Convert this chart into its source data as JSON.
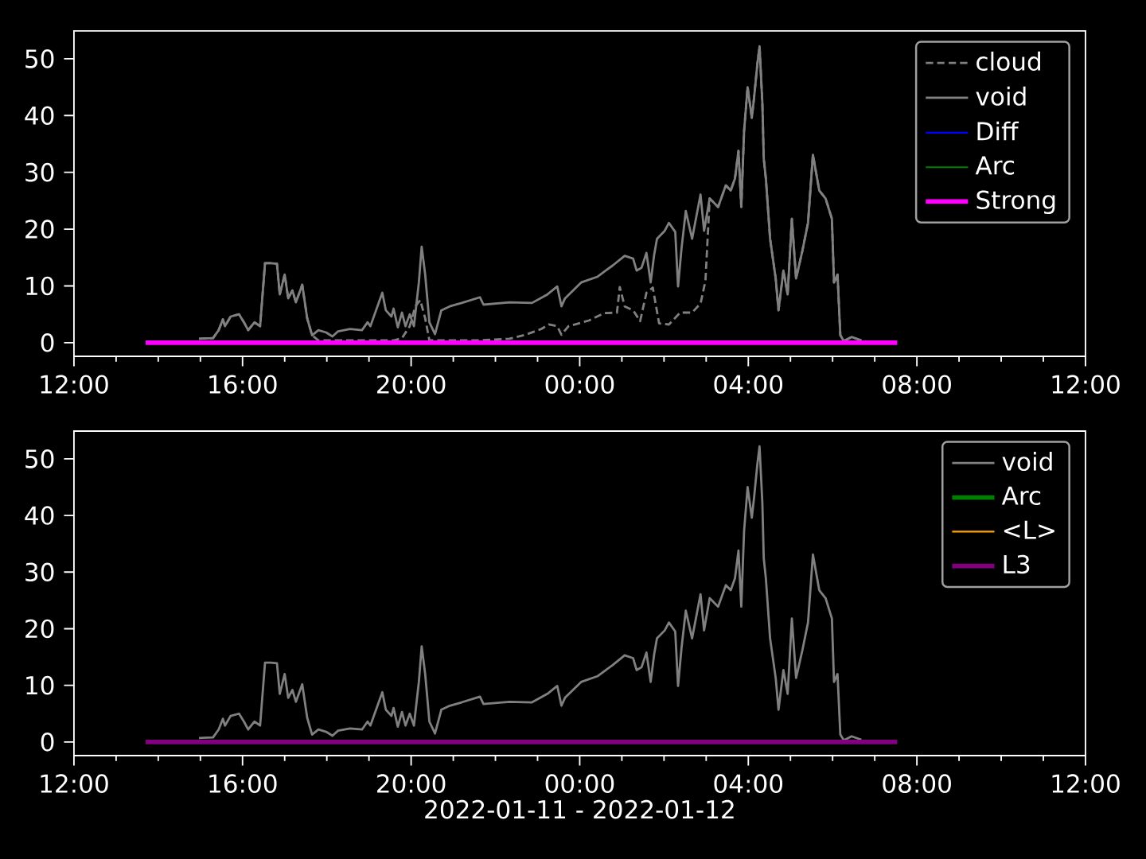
{
  "chart_data": [
    {
      "type": "line",
      "xlim": [
        "2022-01-11T12:00",
        "2022-01-12T12:00"
      ],
      "ylim": [
        -2.4,
        54.9
      ],
      "xticks": [
        {
          "value": "2022-01-11T12:00",
          "label": "12:00"
        },
        {
          "value": "2022-01-11T16:00",
          "label": "16:00"
        },
        {
          "value": "2022-01-11T20:00",
          "label": "20:00"
        },
        {
          "value": "2022-01-12T00:00",
          "label": "00:00"
        },
        {
          "value": "2022-01-12T04:00",
          "label": "04:00"
        },
        {
          "value": "2022-01-12T08:00",
          "label": "08:00"
        },
        {
          "value": "2022-01-12T12:00",
          "label": "12:00"
        }
      ],
      "yticks": [
        0,
        10,
        20,
        30,
        40,
        50
      ],
      "legend": "top right",
      "series": [
        {
          "name": "cloud",
          "color": "#808080",
          "line_style": "dashed",
          "x": [
            "2022-01-11T14:58",
            "2022-01-11T15:18",
            "2022-01-11T15:26",
            "2022-01-11T15:32",
            "2022-01-11T15:35",
            "2022-01-11T15:43",
            "2022-01-11T15:55",
            "2022-01-11T16:02",
            "2022-01-11T16:08",
            "2022-01-11T16:17",
            "2022-01-11T16:25",
            "2022-01-11T16:32",
            "2022-01-11T16:40",
            "2022-01-11T16:49",
            "2022-01-11T16:53",
            "2022-01-11T17:00",
            "2022-01-11T17:05",
            "2022-01-11T17:11",
            "2022-01-11T17:16",
            "2022-01-11T17:25",
            "2022-01-11T17:32",
            "2022-01-11T17:39",
            "2022-01-11T17:48",
            "2022-01-11T18:44",
            "2022-01-11T19:35",
            "2022-01-11T19:47",
            "2022-01-11T19:58",
            "2022-01-11T20:06",
            "2022-01-11T20:13",
            "2022-01-11T20:20",
            "2022-01-11T20:26",
            "2022-01-11T20:49",
            "2022-01-11T21:34",
            "2022-01-11T22:20",
            "2022-01-11T22:43",
            "2022-01-11T23:05",
            "2022-01-11T23:16",
            "2022-01-11T23:28",
            "2022-01-11T23:34",
            "2022-01-11T23:44",
            "2022-01-12T00:13",
            "2022-01-12T00:35",
            "2022-01-12T00:53",
            "2022-01-12T00:57",
            "2022-01-12T01:04",
            "2022-01-12T01:16",
            "2022-01-12T01:26",
            "2022-01-12T01:35",
            "2022-01-12T01:44",
            "2022-01-12T01:53",
            "2022-01-12T02:07",
            "2022-01-12T02:23",
            "2022-01-12T02:40",
            "2022-01-12T02:52",
            "2022-01-12T02:59",
            "2022-01-12T03:05",
            "2022-01-12T03:17",
            "2022-01-12T03:28",
            "2022-01-12T03:35",
            "2022-01-12T03:41",
            "2022-01-12T03:46",
            "2022-01-12T03:50",
            "2022-01-12T03:54",
            "2022-01-12T03:59",
            "2022-01-12T04:05",
            "2022-01-12T04:08",
            "2022-01-12T04:13",
            "2022-01-12T04:16",
            "2022-01-12T04:20",
            "2022-01-12T04:22",
            "2022-01-12T04:25",
            "2022-01-12T04:31",
            "2022-01-12T04:39",
            "2022-01-12T04:43",
            "2022-01-12T04:50",
            "2022-01-12T04:56",
            "2022-01-12T05:02",
            "2022-01-12T05:08",
            "2022-01-12T05:17",
            "2022-01-12T05:25",
            "2022-01-12T05:32",
            "2022-01-12T05:41",
            "2022-01-12T05:50",
            "2022-01-12T05:59",
            "2022-01-12T06:02",
            "2022-01-12T06:07",
            "2022-01-12T06:11",
            "2022-01-12T06:16",
            "2022-01-12T06:27",
            "2022-01-12T06:41"
          ],
          "values": [
            0.7,
            0.8,
            2.2,
            4.1,
            2.9,
            4.6,
            5.0,
            3.6,
            2.2,
            3.6,
            2.9,
            14.0,
            14.0,
            13.9,
            8.5,
            12.0,
            7.8,
            9.2,
            7.1,
            10.2,
            4.3,
            1.3,
            0.4,
            0.4,
            0.4,
            0.8,
            2.9,
            6.4,
            7.5,
            4.3,
            0.4,
            0.4,
            0.4,
            0.7,
            1.4,
            2.4,
            3.2,
            2.9,
            1.4,
            2.9,
            3.9,
            5.2,
            5.3,
            9.8,
            6.4,
            5.7,
            3.8,
            8.8,
            9.7,
            3.4,
            3.2,
            5.3,
            5.3,
            6.9,
            10.9,
            25.4,
            23.9,
            27.7,
            26.8,
            28.9,
            33.8,
            23.9,
            37.3,
            45.0,
            39.6,
            42.9,
            49.2,
            52.2,
            42.2,
            32.4,
            28.9,
            18.3,
            11.3,
            5.7,
            12.7,
            8.5,
            21.8,
            11.3,
            16.2,
            21.1,
            33.1,
            26.8,
            25.4,
            21.8,
            10.6,
            12.0,
            1.3,
            0.3,
            1.0,
            0.4
          ]
        },
        {
          "name": "void",
          "color": "#808080",
          "x": [
            "2022-01-11T14:58",
            "2022-01-11T15:18",
            "2022-01-11T15:26",
            "2022-01-11T15:32",
            "2022-01-11T15:35",
            "2022-01-11T15:43",
            "2022-01-11T15:55",
            "2022-01-11T16:02",
            "2022-01-11T16:08",
            "2022-01-11T16:17",
            "2022-01-11T16:25",
            "2022-01-11T16:32",
            "2022-01-11T16:40",
            "2022-01-11T16:49",
            "2022-01-11T16:53",
            "2022-01-11T17:00",
            "2022-01-11T17:05",
            "2022-01-11T17:11",
            "2022-01-11T17:16",
            "2022-01-11T17:25",
            "2022-01-11T17:32",
            "2022-01-11T17:39",
            "2022-01-11T17:48",
            "2022-01-11T17:59",
            "2022-01-11T18:08",
            "2022-01-11T18:16",
            "2022-01-11T18:33",
            "2022-01-11T18:50",
            "2022-01-11T18:58",
            "2022-01-11T19:02",
            "2022-01-11T19:19",
            "2022-01-11T19:24",
            "2022-01-11T19:32",
            "2022-01-11T19:35",
            "2022-01-11T19:41",
            "2022-01-11T19:47",
            "2022-01-11T19:52",
            "2022-01-11T19:58",
            "2022-01-11T20:04",
            "2022-01-11T20:11",
            "2022-01-11T20:15",
            "2022-01-11T20:20",
            "2022-01-11T20:26",
            "2022-01-11T20:34",
            "2022-01-11T20:43",
            "2022-01-11T20:55",
            "2022-01-11T21:12",
            "2022-01-11T21:38",
            "2022-01-11T21:43",
            "2022-01-11T22:20",
            "2022-01-11T22:52",
            "2022-01-11T23:14",
            "2022-01-11T23:28",
            "2022-01-11T23:34",
            "2022-01-11T23:39",
            "2022-01-12T00:02",
            "2022-01-12T00:25",
            "2022-01-12T00:47",
            "2022-01-12T01:04",
            "2022-01-12T01:16",
            "2022-01-12T01:21",
            "2022-01-12T01:28",
            "2022-01-12T01:35",
            "2022-01-12T01:41",
            "2022-01-12T01:46",
            "2022-01-12T01:50",
            "2022-01-12T02:01",
            "2022-01-12T02:07",
            "2022-01-12T02:16",
            "2022-01-12T02:20",
            "2022-01-12T02:25",
            "2022-01-12T02:31",
            "2022-01-12T02:40",
            "2022-01-12T02:52",
            "2022-01-12T02:57",
            "2022-01-12T03:05",
            "2022-01-12T03:17",
            "2022-01-12T03:28",
            "2022-01-12T03:35",
            "2022-01-12T03:41",
            "2022-01-12T03:46",
            "2022-01-12T03:50",
            "2022-01-12T03:54",
            "2022-01-12T03:59",
            "2022-01-12T04:05",
            "2022-01-12T04:08",
            "2022-01-12T04:13",
            "2022-01-12T04:16",
            "2022-01-12T04:20",
            "2022-01-12T04:22",
            "2022-01-12T04:25",
            "2022-01-12T04:31",
            "2022-01-12T04:39",
            "2022-01-12T04:43",
            "2022-01-12T04:50",
            "2022-01-12T04:56",
            "2022-01-12T05:02",
            "2022-01-12T05:08",
            "2022-01-12T05:17",
            "2022-01-12T05:25",
            "2022-01-12T05:32",
            "2022-01-12T05:41",
            "2022-01-12T05:50",
            "2022-01-12T05:59",
            "2022-01-12T06:02",
            "2022-01-12T06:07",
            "2022-01-12T06:11",
            "2022-01-12T06:16",
            "2022-01-12T06:27",
            "2022-01-12T06:41"
          ],
          "values": [
            0.7,
            0.8,
            2.2,
            4.1,
            2.9,
            4.6,
            5.0,
            3.6,
            2.2,
            3.6,
            2.9,
            14.0,
            14.0,
            13.9,
            8.5,
            12.0,
            7.8,
            9.2,
            7.1,
            10.2,
            4.3,
            1.3,
            2.2,
            1.8,
            1.1,
            2.0,
            2.4,
            2.2,
            3.6,
            2.9,
            8.8,
            5.7,
            4.6,
            6.0,
            2.7,
            5.3,
            2.9,
            5.0,
            2.9,
            10.6,
            16.9,
            12.0,
            3.6,
            1.5,
            5.7,
            6.4,
            7.0,
            8.0,
            6.7,
            7.1,
            7.0,
            8.5,
            9.9,
            6.4,
            7.8,
            10.6,
            11.6,
            13.6,
            15.3,
            14.8,
            12.7,
            13.2,
            15.8,
            10.6,
            15.5,
            18.3,
            19.7,
            21.1,
            19.5,
            9.9,
            16.7,
            23.2,
            18.3,
            26.1,
            19.7,
            25.4,
            23.9,
            27.7,
            26.8,
            28.9,
            33.8,
            23.9,
            37.3,
            45.0,
            39.6,
            42.9,
            49.2,
            52.2,
            42.2,
            32.4,
            28.9,
            18.3,
            11.3,
            5.7,
            12.7,
            8.5,
            21.8,
            11.3,
            16.2,
            21.1,
            33.1,
            26.8,
            25.4,
            21.8,
            10.6,
            12.0,
            1.3,
            0.3,
            1.0,
            0.4
          ]
        },
        {
          "name": "Diff",
          "color": "#0000ff",
          "values": [
            null
          ]
        },
        {
          "name": "Arc",
          "color": "#008000",
          "values": [
            null
          ]
        },
        {
          "name": "Strong",
          "color": "#ff00ff",
          "x": [
            "2022-01-11T13:42",
            "2022-01-12T07:32"
          ],
          "values": [
            0,
            0
          ]
        }
      ]
    },
    {
      "type": "line",
      "xlim": [
        "2022-01-11T12:00",
        "2022-01-12T12:00"
      ],
      "ylim": [
        -2.4,
        54.9
      ],
      "xlabel": "2022-01-11 - 2022-01-12",
      "xticks": [
        {
          "value": "2022-01-11T12:00",
          "label": "12:00"
        },
        {
          "value": "2022-01-11T16:00",
          "label": "16:00"
        },
        {
          "value": "2022-01-11T20:00",
          "label": "20:00"
        },
        {
          "value": "2022-01-12T00:00",
          "label": "00:00"
        },
        {
          "value": "2022-01-12T04:00",
          "label": "04:00"
        },
        {
          "value": "2022-01-12T08:00",
          "label": "08:00"
        },
        {
          "value": "2022-01-12T12:00",
          "label": "12:00"
        }
      ],
      "yticks": [
        0,
        10,
        20,
        30,
        40,
        50
      ],
      "legend": "top right",
      "series": [
        {
          "name": "void",
          "color": "#808080",
          "x": [
            "2022-01-11T14:58",
            "2022-01-11T15:18",
            "2022-01-11T15:26",
            "2022-01-11T15:32",
            "2022-01-11T15:35",
            "2022-01-11T15:43",
            "2022-01-11T15:55",
            "2022-01-11T16:02",
            "2022-01-11T16:08",
            "2022-01-11T16:17",
            "2022-01-11T16:25",
            "2022-01-11T16:32",
            "2022-01-11T16:40",
            "2022-01-11T16:49",
            "2022-01-11T16:53",
            "2022-01-11T17:00",
            "2022-01-11T17:05",
            "2022-01-11T17:11",
            "2022-01-11T17:16",
            "2022-01-11T17:25",
            "2022-01-11T17:32",
            "2022-01-11T17:39",
            "2022-01-11T17:48",
            "2022-01-11T17:59",
            "2022-01-11T18:08",
            "2022-01-11T18:16",
            "2022-01-11T18:33",
            "2022-01-11T18:50",
            "2022-01-11T18:58",
            "2022-01-11T19:02",
            "2022-01-11T19:19",
            "2022-01-11T19:24",
            "2022-01-11T19:32",
            "2022-01-11T19:35",
            "2022-01-11T19:41",
            "2022-01-11T19:47",
            "2022-01-11T19:52",
            "2022-01-11T19:58",
            "2022-01-11T20:04",
            "2022-01-11T20:11",
            "2022-01-11T20:15",
            "2022-01-11T20:20",
            "2022-01-11T20:26",
            "2022-01-11T20:34",
            "2022-01-11T20:43",
            "2022-01-11T20:55",
            "2022-01-11T21:12",
            "2022-01-11T21:38",
            "2022-01-11T21:43",
            "2022-01-11T22:20",
            "2022-01-11T22:52",
            "2022-01-11T23:14",
            "2022-01-11T23:28",
            "2022-01-11T23:34",
            "2022-01-11T23:39",
            "2022-01-12T00:02",
            "2022-01-12T00:25",
            "2022-01-12T00:47",
            "2022-01-12T01:04",
            "2022-01-12T01:16",
            "2022-01-12T01:21",
            "2022-01-12T01:28",
            "2022-01-12T01:35",
            "2022-01-12T01:41",
            "2022-01-12T01:46",
            "2022-01-12T01:50",
            "2022-01-12T02:01",
            "2022-01-12T02:07",
            "2022-01-12T02:16",
            "2022-01-12T02:20",
            "2022-01-12T02:25",
            "2022-01-12T02:31",
            "2022-01-12T02:40",
            "2022-01-12T02:52",
            "2022-01-12T02:57",
            "2022-01-12T03:05",
            "2022-01-12T03:17",
            "2022-01-12T03:28",
            "2022-01-12T03:35",
            "2022-01-12T03:41",
            "2022-01-12T03:46",
            "2022-01-12T03:50",
            "2022-01-12T03:54",
            "2022-01-12T03:59",
            "2022-01-12T04:05",
            "2022-01-12T04:08",
            "2022-01-12T04:13",
            "2022-01-12T04:16",
            "2022-01-12T04:20",
            "2022-01-12T04:22",
            "2022-01-12T04:25",
            "2022-01-12T04:31",
            "2022-01-12T04:39",
            "2022-01-12T04:43",
            "2022-01-12T04:50",
            "2022-01-12T04:56",
            "2022-01-12T05:02",
            "2022-01-12T05:08",
            "2022-01-12T05:17",
            "2022-01-12T05:25",
            "2022-01-12T05:32",
            "2022-01-12T05:41",
            "2022-01-12T05:50",
            "2022-01-12T05:59",
            "2022-01-12T06:02",
            "2022-01-12T06:07",
            "2022-01-12T06:11",
            "2022-01-12T06:16",
            "2022-01-12T06:27",
            "2022-01-12T06:41"
          ],
          "values": [
            0.7,
            0.8,
            2.2,
            4.1,
            2.9,
            4.6,
            5.0,
            3.6,
            2.2,
            3.6,
            2.9,
            14.0,
            14.0,
            13.9,
            8.5,
            12.0,
            7.8,
            9.2,
            7.1,
            10.2,
            4.3,
            1.3,
            2.2,
            1.8,
            1.1,
            2.0,
            2.4,
            2.2,
            3.6,
            2.9,
            8.8,
            5.7,
            4.6,
            6.0,
            2.7,
            5.3,
            2.9,
            5.0,
            2.9,
            10.6,
            16.9,
            12.0,
            3.6,
            1.5,
            5.7,
            6.4,
            7.0,
            8.0,
            6.7,
            7.1,
            7.0,
            8.5,
            9.9,
            6.4,
            7.8,
            10.6,
            11.6,
            13.6,
            15.3,
            14.8,
            12.7,
            13.2,
            15.8,
            10.6,
            15.5,
            18.3,
            19.7,
            21.1,
            19.5,
            9.9,
            16.7,
            23.2,
            18.3,
            26.1,
            19.7,
            25.4,
            23.9,
            27.7,
            26.8,
            28.9,
            33.8,
            23.9,
            37.3,
            45.0,
            39.6,
            42.9,
            49.2,
            52.2,
            42.2,
            32.4,
            28.9,
            18.3,
            11.3,
            5.7,
            12.7,
            8.5,
            21.8,
            11.3,
            16.2,
            21.1,
            33.1,
            26.8,
            25.4,
            21.8,
            10.6,
            12.0,
            1.3,
            0.3,
            1.0,
            0.4
          ]
        },
        {
          "name": "Arc",
          "color": "#008000",
          "values": [
            null
          ]
        },
        {
          "name": "<L>",
          "color": "#ffa500",
          "values": [
            null
          ]
        },
        {
          "name": "L3",
          "color": "#800080",
          "x": [
            "2022-01-11T13:42",
            "2022-01-12T07:32"
          ],
          "values": [
            0,
            0
          ]
        }
      ]
    }
  ]
}
